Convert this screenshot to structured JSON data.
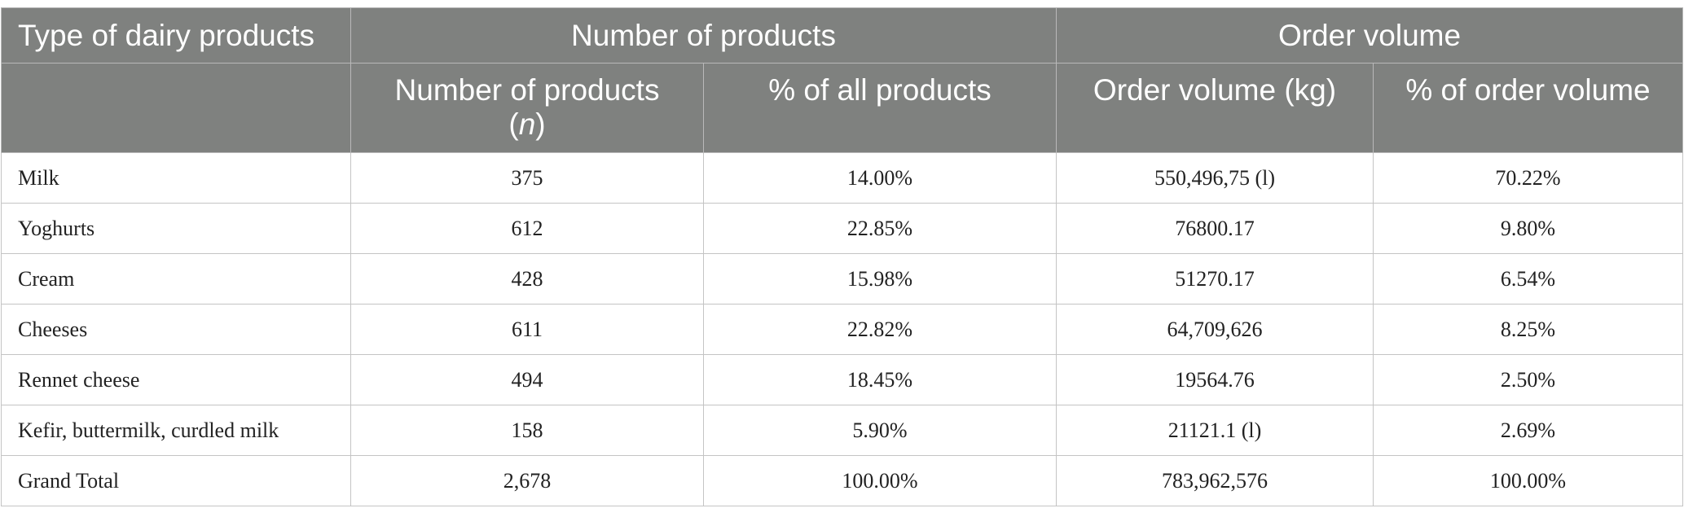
{
  "table": {
    "header": {
      "type_label": "Type of dairy products",
      "group_products": "Number of products",
      "group_volume": "Order volume",
      "sub_count_prefix": "Number of products",
      "sub_count_italic": "n",
      "sub_pct_products": "% of all products",
      "sub_volume": "Order volume (kg)",
      "sub_pct_volume": "% of order volume"
    },
    "rows": [
      [
        "Milk",
        "375",
        "14.00%",
        "550,496,75 (l)",
        "70.22%"
      ],
      [
        "Yoghurts",
        "612",
        "22.85%",
        "76800.17",
        "9.80%"
      ],
      [
        "Cream",
        "428",
        "15.98%",
        "51270.17",
        "6.54%"
      ],
      [
        "Cheeses",
        "611",
        "22.82%",
        "64,709,626",
        "8.25%"
      ],
      [
        "Rennet cheese",
        "494",
        "18.45%",
        "19564.76",
        "2.50%"
      ],
      [
        "Kefir, buttermilk, curdled milk",
        "158",
        "5.90%",
        "21121.1 (l)",
        "2.69%"
      ],
      [
        "Grand Total",
        "2,678",
        "100.00%",
        "783,962,576",
        "100.00%"
      ]
    ]
  }
}
